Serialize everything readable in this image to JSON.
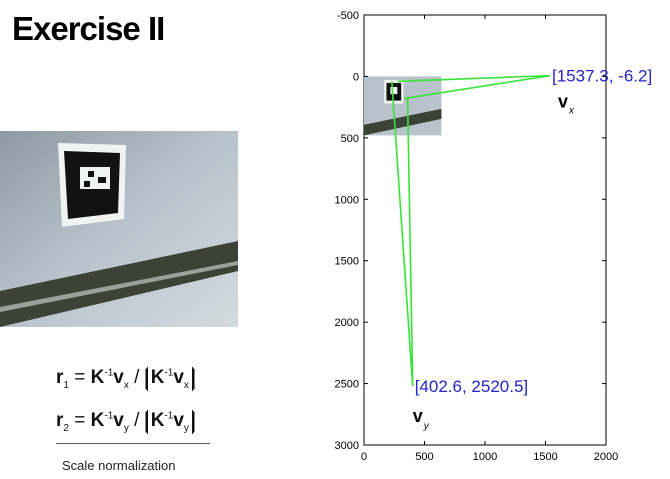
{
  "slide": {
    "title": "Exercise II",
    "formula_1": {
      "lhs": "r",
      "lhs_sub": "1",
      "k": "K",
      "k_sup": "-1",
      "v": "v",
      "v_sub": "x"
    },
    "formula_2": {
      "lhs": "r",
      "lhs_sub": "2",
      "k": "K",
      "k_sup": "-1",
      "v": "v",
      "v_sub": "y"
    },
    "caption": "Scale normalization"
  },
  "chart_data": {
    "type": "line",
    "xlim": [
      0,
      2000
    ],
    "ylim": [
      -500,
      3000
    ],
    "y_reversed": true,
    "x_ticks": [
      "0",
      "500",
      "1000",
      "1500",
      "2000"
    ],
    "y_ticks": [
      "-500",
      "0",
      "500",
      "1000",
      "1500",
      "2000",
      "2500",
      "3000"
    ],
    "image_extent": {
      "x": [
        0,
        640
      ],
      "y": [
        0,
        480
      ]
    },
    "points": [
      {
        "label": "[1537.3, -6.2]",
        "name": "v",
        "sub": "x",
        "x": 1537.3,
        "y": -6.2
      },
      {
        "label": "[402.6, 2520.5]",
        "name": "v",
        "sub": "y",
        "x": 402.6,
        "y": 2520.5
      }
    ],
    "lines_to_vx": [
      {
        "from": [
          280,
          40
        ],
        "to": [
          1537.3,
          -6.2
        ]
      },
      {
        "from": [
          330,
          180
        ],
        "to": [
          1537.3,
          -6.2
        ]
      }
    ],
    "lines_to_vy": [
      {
        "from": [
          230,
          40
        ],
        "to": [
          402.6,
          2520.5
        ]
      },
      {
        "from": [
          360,
          180
        ],
        "to": [
          402.6,
          2520.5
        ]
      }
    ],
    "colors": {
      "lines": "#39e339",
      "labels": "#2424c8",
      "axis": "#000000"
    }
  }
}
